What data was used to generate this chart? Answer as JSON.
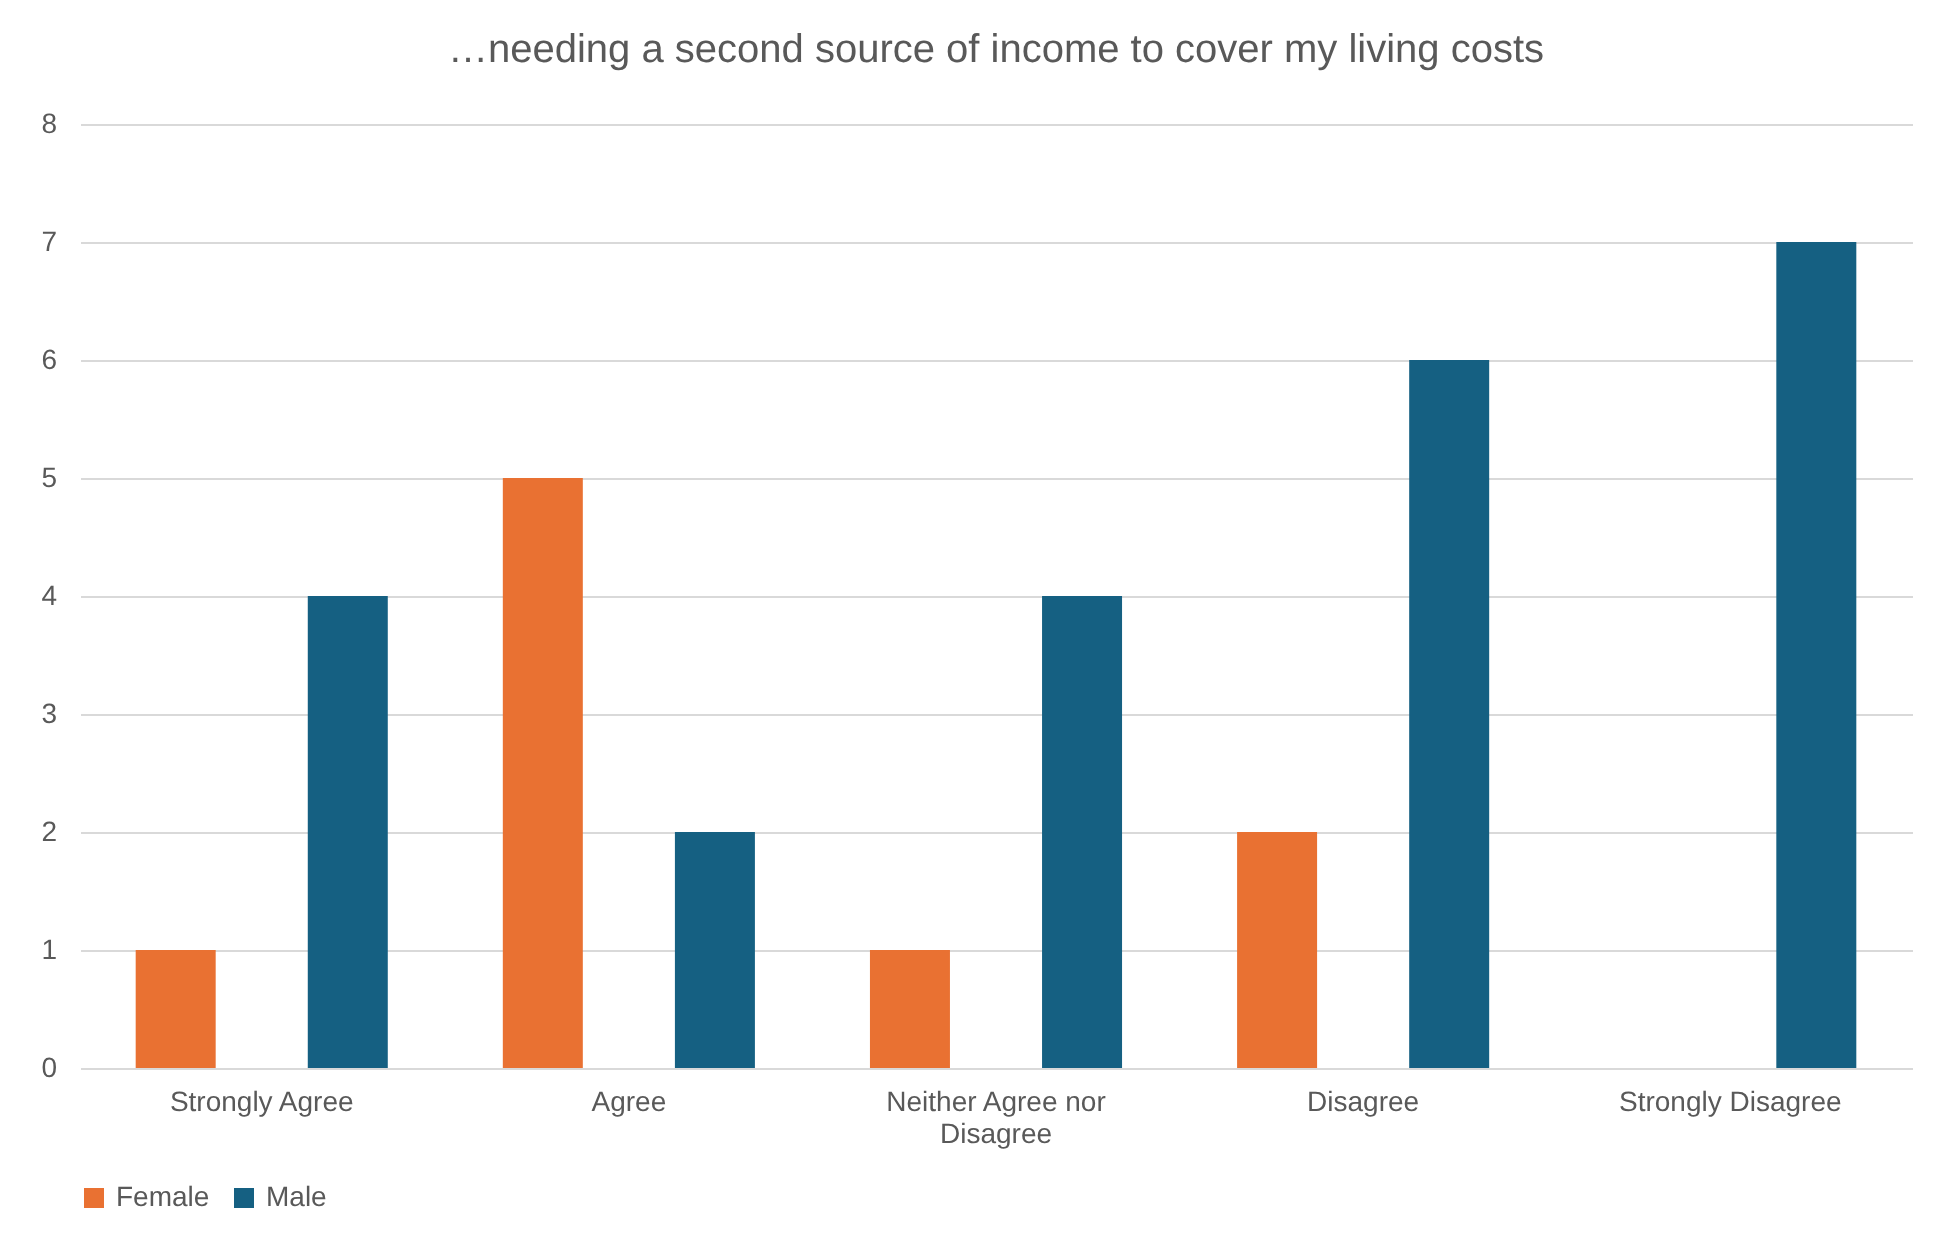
{
  "chart_data": {
    "type": "bar",
    "title": "…needing a second source of income to cover my living costs",
    "categories": [
      "Strongly Agree",
      "Agree",
      "Neither Agree nor Disagree",
      "Disagree",
      "Strongly Disagree"
    ],
    "series": [
      {
        "name": "Female",
        "color": "#e97132",
        "values": [
          1,
          5,
          1,
          2,
          0
        ]
      },
      {
        "name": "Male",
        "color": "#156082",
        "values": [
          4,
          2,
          4,
          6,
          7
        ]
      }
    ],
    "ylim": [
      0,
      8
    ],
    "yticks": [
      0,
      1,
      2,
      3,
      4,
      5,
      6,
      7,
      8
    ],
    "grid": "y",
    "legend": "bottom"
  }
}
